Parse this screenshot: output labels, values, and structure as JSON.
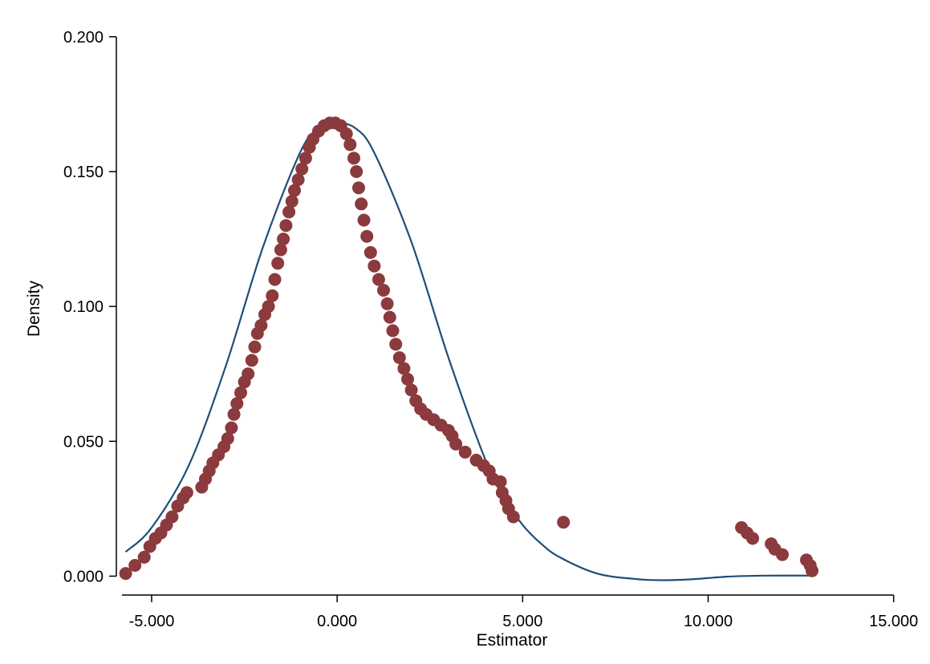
{
  "chart_data": {
    "type": "scatter",
    "title": "",
    "xlabel": "Estimator",
    "ylabel": "Density",
    "xlim": [
      -5.8,
      15.05
    ],
    "ylim": [
      -0.007,
      0.205
    ],
    "xticks": [
      -5,
      0,
      5,
      10,
      15
    ],
    "xtick_labels": [
      "-5.000",
      "0.000",
      "5.000",
      "10.000",
      "15.000"
    ],
    "yticks": [
      0,
      0.05,
      0.1,
      0.15,
      0.2
    ],
    "ytick_labels": [
      "0.000",
      "0.050",
      "0.100",
      "0.150",
      "0.200"
    ],
    "grid": false,
    "legend": "none",
    "colors": {
      "points": "#8b3a3e",
      "curve": "#1f4e79"
    },
    "series": [
      {
        "type": "scatter",
        "points": [
          [
            -5.7,
            0.001
          ],
          [
            -5.45,
            0.004
          ],
          [
            -5.2,
            0.007
          ],
          [
            -5.05,
            0.011
          ],
          [
            -4.9,
            0.014
          ],
          [
            -4.75,
            0.016
          ],
          [
            -4.6,
            0.019
          ],
          [
            -4.45,
            0.022
          ],
          [
            -4.3,
            0.026
          ],
          [
            -4.15,
            0.029
          ],
          [
            -4.05,
            0.031
          ],
          [
            -3.65,
            0.033
          ],
          [
            -3.55,
            0.036
          ],
          [
            -3.45,
            0.039
          ],
          [
            -3.35,
            0.042
          ],
          [
            -3.2,
            0.045
          ],
          [
            -3.05,
            0.048
          ],
          [
            -2.95,
            0.051
          ],
          [
            -2.85,
            0.055
          ],
          [
            -2.78,
            0.06
          ],
          [
            -2.7,
            0.064
          ],
          [
            -2.6,
            0.068
          ],
          [
            -2.5,
            0.072
          ],
          [
            -2.4,
            0.075
          ],
          [
            -2.3,
            0.08
          ],
          [
            -2.22,
            0.085
          ],
          [
            -2.15,
            0.09
          ],
          [
            -2.05,
            0.093
          ],
          [
            -1.95,
            0.097
          ],
          [
            -1.85,
            0.1
          ],
          [
            -1.75,
            0.104
          ],
          [
            -1.68,
            0.11
          ],
          [
            -1.6,
            0.116
          ],
          [
            -1.52,
            0.121
          ],
          [
            -1.45,
            0.125
          ],
          [
            -1.38,
            0.13
          ],
          [
            -1.3,
            0.135
          ],
          [
            -1.22,
            0.139
          ],
          [
            -1.15,
            0.143
          ],
          [
            -1.05,
            0.147
          ],
          [
            -0.95,
            0.151
          ],
          [
            -0.85,
            0.155
          ],
          [
            -0.75,
            0.159
          ],
          [
            -0.65,
            0.162
          ],
          [
            -0.5,
            0.165
          ],
          [
            -0.35,
            0.167
          ],
          [
            -0.2,
            0.168
          ],
          [
            -0.05,
            0.168
          ],
          [
            0.1,
            0.167
          ],
          [
            0.25,
            0.164
          ],
          [
            0.35,
            0.16
          ],
          [
            0.45,
            0.155
          ],
          [
            0.52,
            0.15
          ],
          [
            0.58,
            0.144
          ],
          [
            0.65,
            0.138
          ],
          [
            0.72,
            0.132
          ],
          [
            0.8,
            0.126
          ],
          [
            0.9,
            0.12
          ],
          [
            1.0,
            0.115
          ],
          [
            1.12,
            0.11
          ],
          [
            1.25,
            0.106
          ],
          [
            1.35,
            0.101
          ],
          [
            1.42,
            0.096
          ],
          [
            1.5,
            0.091
          ],
          [
            1.58,
            0.086
          ],
          [
            1.68,
            0.081
          ],
          [
            1.8,
            0.077
          ],
          [
            1.9,
            0.073
          ],
          [
            2.0,
            0.069
          ],
          [
            2.12,
            0.065
          ],
          [
            2.25,
            0.062
          ],
          [
            2.4,
            0.06
          ],
          [
            2.6,
            0.058
          ],
          [
            2.8,
            0.056
          ],
          [
            3.0,
            0.054
          ],
          [
            3.1,
            0.052
          ],
          [
            3.2,
            0.049
          ],
          [
            3.45,
            0.046
          ],
          [
            3.75,
            0.043
          ],
          [
            3.95,
            0.041
          ],
          [
            4.1,
            0.039
          ],
          [
            4.2,
            0.036
          ],
          [
            4.4,
            0.035
          ],
          [
            4.45,
            0.031
          ],
          [
            4.55,
            0.028
          ],
          [
            4.62,
            0.025
          ],
          [
            4.75,
            0.022
          ],
          [
            6.1,
            0.02
          ],
          [
            10.9,
            0.018
          ],
          [
            11.05,
            0.016
          ],
          [
            11.2,
            0.014
          ],
          [
            11.7,
            0.012
          ],
          [
            11.8,
            0.01
          ],
          [
            12.0,
            0.008
          ],
          [
            12.65,
            0.006
          ],
          [
            12.75,
            0.004
          ],
          [
            12.8,
            0.002
          ]
        ]
      },
      {
        "type": "line",
        "points": [
          [
            -5.7,
            0.009
          ],
          [
            -5.0,
            0.018
          ],
          [
            -4.0,
            0.041
          ],
          [
            -3.0,
            0.078
          ],
          [
            -2.0,
            0.122
          ],
          [
            -1.0,
            0.157
          ],
          [
            -0.5,
            0.166
          ],
          [
            0.0,
            0.168
          ],
          [
            0.5,
            0.166
          ],
          [
            1.0,
            0.157
          ],
          [
            2.0,
            0.124
          ],
          [
            3.0,
            0.081
          ],
          [
            4.0,
            0.043
          ],
          [
            4.5,
            0.029
          ],
          [
            5.0,
            0.019
          ],
          [
            5.5,
            0.012
          ],
          [
            6.0,
            0.007
          ],
          [
            7.0,
            0.001
          ],
          [
            8.0,
            -0.001
          ],
          [
            8.7,
            -0.0015
          ],
          [
            9.5,
            -0.0012
          ],
          [
            10.5,
            -0.0002
          ],
          [
            11.5,
            0.0002
          ],
          [
            12.8,
            0.0002
          ]
        ]
      }
    ]
  }
}
